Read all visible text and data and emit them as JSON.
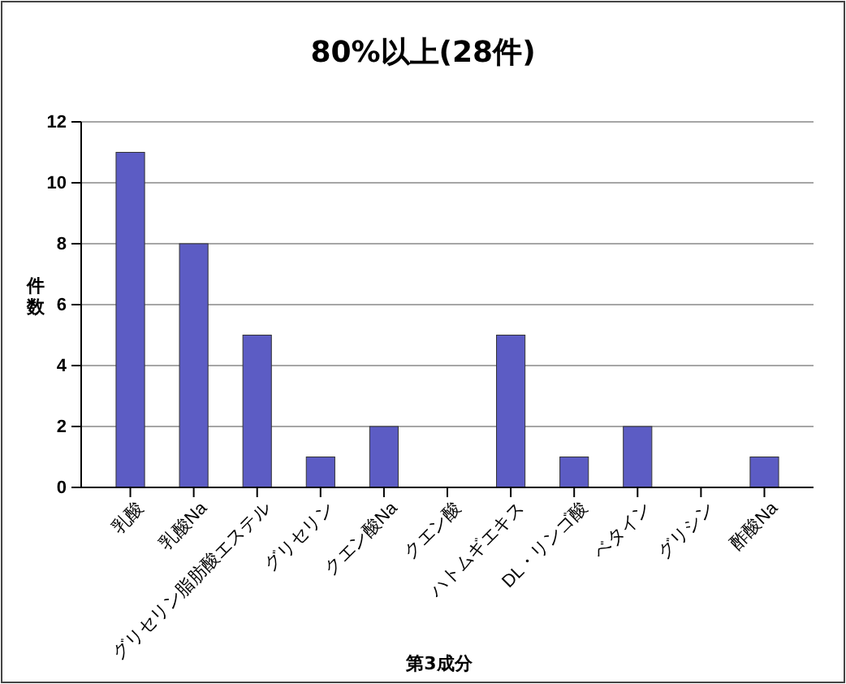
{
  "chart_data": {
    "type": "bar",
    "title": "80%以上(28件)",
    "xlabel": "第3成分",
    "ylabel": "件数",
    "categories": [
      "乳酸",
      "乳酸Na",
      "グリセリン脂肪酸エステル",
      "グリセリン",
      "クエン酸Na",
      "クエン酸",
      "ハトムギエキス",
      "DL・リンゴ酸",
      "ベタイン",
      "グリシン",
      "酢酸Na"
    ],
    "values": [
      11,
      8,
      5,
      1,
      2,
      0,
      5,
      1,
      2,
      0,
      1
    ],
    "color": "#5c5cc4",
    "ylim": [
      0,
      12
    ],
    "yticks": [
      0,
      2,
      4,
      6,
      8,
      10,
      12
    ],
    "grid": "y"
  }
}
